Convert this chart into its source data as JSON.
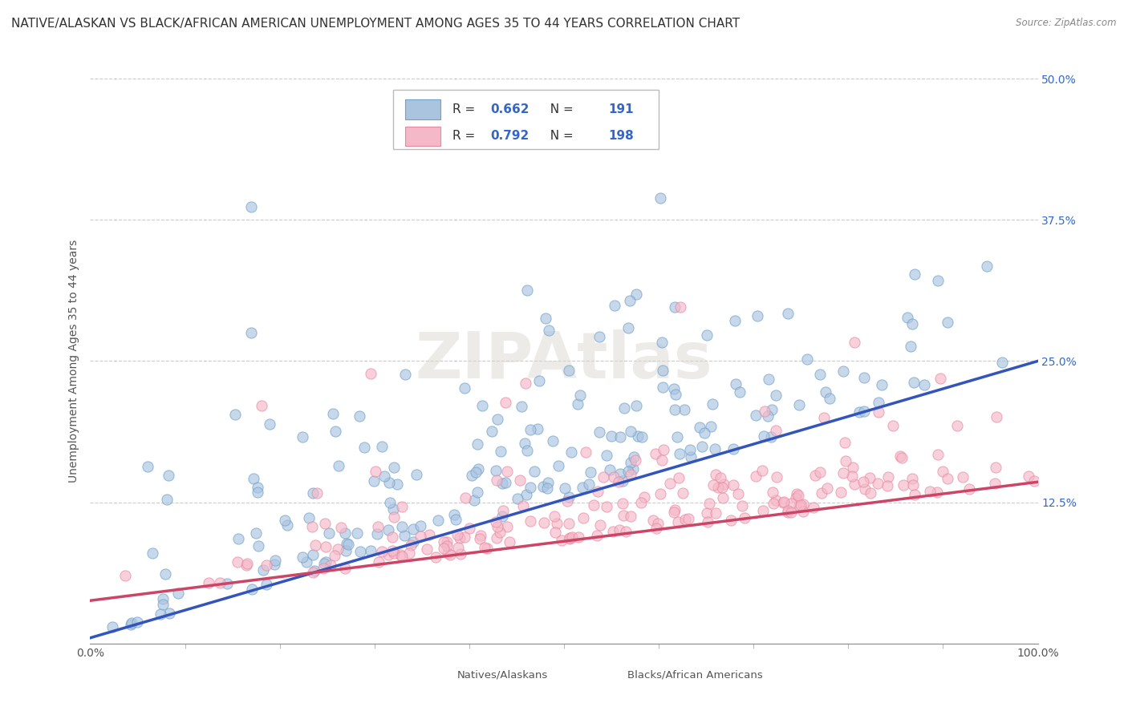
{
  "title": "NATIVE/ALASKAN VS BLACK/AFRICAN AMERICAN UNEMPLOYMENT AMONG AGES 35 TO 44 YEARS CORRELATION CHART",
  "source": "Source: ZipAtlas.com",
  "ylabel": "Unemployment Among Ages 35 to 44 years",
  "xlim": [
    0,
    1
  ],
  "ylim": [
    0,
    0.5
  ],
  "xtick_labels": [
    "0.0%",
    "100.0%"
  ],
  "ytick_labels": [
    "12.5%",
    "25.0%",
    "37.5%",
    "50.0%"
  ],
  "ytick_values": [
    0.125,
    0.25,
    0.375,
    0.5
  ],
  "background_color": "#ffffff",
  "watermark_text": "ZIPAtlas",
  "legend_R_blue": "0.662",
  "legend_N_blue": "191",
  "legend_R_pink": "0.792",
  "legend_N_pink": "198",
  "blue_fill": "#aac4e0",
  "blue_edge": "#6ea0cc",
  "pink_fill": "#f5b8c8",
  "pink_edge": "#e888a0",
  "blue_line_color": "#3355bb",
  "pink_line_color": "#cc4466",
  "scatter_blue_seed": 42,
  "scatter_pink_seed": 123,
  "n_blue": 191,
  "n_pink": 198,
  "blue_slope": 0.245,
  "blue_intercept": 0.005,
  "pink_slope": 0.105,
  "pink_intercept": 0.038,
  "grid_color": "#cccccc",
  "title_fontsize": 11,
  "axis_label_fontsize": 10,
  "tick_fontsize": 10,
  "legend_fontsize": 11,
  "legend_text_color": "#333333",
  "legend_value_color": "#3366cc"
}
